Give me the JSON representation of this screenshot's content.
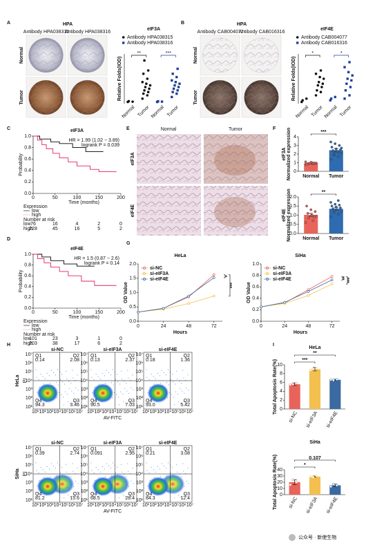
{
  "panels": {
    "letters": [
      "A",
      "B",
      "C",
      "D",
      "E",
      "F",
      "G",
      "H",
      "I"
    ],
    "A": {
      "title": "HPA",
      "antibodies": [
        "Antibody HPA038315",
        "Antibody HPA038316"
      ],
      "rows": [
        "Normal",
        "Tumor"
      ]
    },
    "B": {
      "title": "HPA",
      "antibodies": [
        "Antibody CAB004077",
        "Antibody CAB016316"
      ],
      "rows": [
        "Normal",
        "Tumor"
      ]
    },
    "E": {
      "columns": [
        "Normal",
        "Tumor"
      ],
      "rows": [
        "eIF3A",
        "eIF4E"
      ]
    },
    "H": {
      "rows": [
        "HeLa",
        "SiHa"
      ],
      "columns": [
        "si-NC",
        "si-eIF3A",
        "si-eIF4E"
      ],
      "quadrant_names": [
        "Q1",
        "Q2",
        "Q3",
        "Q4"
      ],
      "quadrants": [
        [
          [
            "0.14",
            "2.08",
            "3.46",
            "94.3"
          ],
          [
            "0.13",
            "2.37",
            "7.03",
            "90.5"
          ],
          [
            "0.18",
            "1.36",
            "5.42",
            "93.0"
          ]
        ],
        [
          [
            "0.39",
            "2.74",
            "15.6",
            "81.2"
          ],
          [
            "0.091",
            "2.95",
            "28.4",
            "68.5"
          ],
          [
            "0.21",
            "3.08",
            "12.4",
            "84.3"
          ]
        ]
      ],
      "xlabel": "AV-FITC",
      "ylabel": "PI",
      "tick_labels": [
        "10¹",
        "10²",
        "10³",
        "10⁴",
        "10⁵",
        "10⁶",
        "10⁷"
      ]
    }
  },
  "watermark": "公众号 · 新使生物",
  "chart_data": [
    {
      "type": "dot",
      "title": "eIF3A",
      "ylabel": "Relative Folds(IOD)",
      "categories": [
        "Normal",
        "Tumor"
      ],
      "ylim": [
        0,
        3
      ],
      "series": [
        {
          "name": "Antibody HPA038315",
          "color": "#111111",
          "marker": "circle",
          "values": [
            [
              0.1,
              0.12,
              0.15
            ],
            [
              0.3,
              0.5,
              0.6,
              0.7,
              0.8,
              0.9,
              1.0,
              1.1,
              1.2,
              1.3,
              1.5,
              1.8,
              2.0,
              2.6
            ]
          ]
        },
        {
          "name": "Antibody HPA038316",
          "color": "#1f3f9a",
          "marker": "square",
          "values": [
            [
              0.1,
              0.12,
              0.14
            ],
            [
              0.4,
              0.6,
              0.7,
              0.8,
              0.9,
              1.0,
              1.1,
              1.2,
              1.3,
              1.4,
              1.6,
              1.8,
              2.1
            ]
          ]
        }
      ],
      "annotations": [
        "**",
        "***"
      ]
    },
    {
      "type": "dot",
      "title": "eIF4E",
      "ylabel": "Relative Folds(IOD)",
      "categories": [
        "Normal",
        "Tumor"
      ],
      "ylim": [
        0,
        3
      ],
      "series": [
        {
          "name": "Antibody CAB004077",
          "color": "#111111",
          "marker": "circle",
          "values": [
            [
              0.1,
              0.3,
              0.2
            ],
            [
              0.5,
              0.7,
              0.8,
              1.0,
              1.1,
              1.2,
              1.3,
              1.5,
              1.6,
              1.8,
              2.0
            ]
          ]
        },
        {
          "name": "Antibody CAB016316",
          "color": "#1f3f9a",
          "marker": "square",
          "values": [
            [
              0.2,
              0.4,
              0.3
            ],
            [
              0.3,
              0.5,
              0.8,
              1.0,
              1.2,
              1.4,
              1.5,
              1.7,
              1.9,
              2.2,
              2.5
            ]
          ]
        }
      ],
      "annotations": [
        "*",
        "*"
      ]
    },
    {
      "type": "km",
      "title": "eIF3A",
      "stats": [
        "HR = 1.99 (1.02 − 3.89)",
        "logrank P = 0.039"
      ],
      "xlabel": "Time (months)",
      "ylabel": "Probability",
      "xlim": [
        0,
        200
      ],
      "xticks": [
        0,
        50,
        100,
        150,
        200
      ],
      "ylim": [
        0,
        1
      ],
      "yticks": [
        {
          "value": 0,
          "label": "0.0"
        },
        0.2,
        0.4,
        0.6,
        0.8,
        {
          "value": 1,
          "label": "1.0"
        }
      ],
      "legend_title": "Expression",
      "series": [
        {
          "name": "low",
          "color": "#000000",
          "x": [
            0,
            15,
            15,
            40,
            40,
            60,
            60,
            90,
            90,
            120,
            120,
            160
          ],
          "y": [
            1,
            1,
            0.95,
            0.95,
            0.9,
            0.9,
            0.87,
            0.87,
            0.8,
            0.8,
            0.73,
            0.73
          ]
        },
        {
          "name": "high",
          "color": "#e0245e",
          "x": [
            0,
            10,
            10,
            20,
            20,
            30,
            30,
            45,
            45,
            60,
            60,
            80,
            80,
            100,
            100,
            130,
            130,
            150,
            150,
            190
          ],
          "y": [
            1,
            1,
            0.93,
            0.93,
            0.85,
            0.85,
            0.78,
            0.78,
            0.7,
            0.7,
            0.62,
            0.62,
            0.55,
            0.55,
            0.48,
            0.48,
            0.42,
            0.42,
            0.38,
            0.38
          ]
        }
      ],
      "risk_table": {
        "title": "Number at risk",
        "rows": [
          {
            "name": "low",
            "color": "#000000",
            "counts": [
              76,
              16,
              4,
              2,
              0
            ]
          },
          {
            "name": "high",
            "color": "#e0245e",
            "counts": [
              228,
              45,
              16,
              5,
              2
            ]
          }
        ]
      }
    },
    {
      "type": "km",
      "title": "eIF4E",
      "stats": [
        "HR = 1.5 (0.87 − 2.6)",
        "logrank P = 0.14"
      ],
      "xlabel": "Time (months)",
      "ylabel": "Probability",
      "xlim": [
        0,
        200
      ],
      "xticks": [
        0,
        50,
        100,
        150,
        200
      ],
      "ylim": [
        0,
        1
      ],
      "yticks": [
        {
          "value": 0,
          "label": "0.0"
        },
        0.2,
        0.4,
        0.6,
        0.8,
        {
          "value": 1,
          "label": "1.0"
        }
      ],
      "legend_title": "Expression",
      "series": [
        {
          "name": "low",
          "color": "#000000",
          "x": [
            0,
            20,
            20,
            40,
            40,
            70,
            70,
            100,
            100,
            140
          ],
          "y": [
            1,
            1,
            0.95,
            0.95,
            0.88,
            0.88,
            0.82,
            0.82,
            0.78,
            0.78
          ]
        },
        {
          "name": "high",
          "color": "#e0245e",
          "x": [
            0,
            10,
            10,
            25,
            25,
            40,
            40,
            60,
            60,
            80,
            80,
            110,
            110,
            140,
            140,
            190
          ],
          "y": [
            1,
            1,
            0.92,
            0.92,
            0.84,
            0.84,
            0.76,
            0.76,
            0.68,
            0.68,
            0.6,
            0.6,
            0.5,
            0.5,
            0.42,
            0.42
          ]
        }
      ],
      "risk_table": {
        "title": "Number at risk",
        "rows": [
          {
            "name": "low",
            "color": "#000000",
            "counts": [
              101,
              23,
              3,
              1,
              0
            ]
          },
          {
            "name": "high",
            "color": "#e0245e",
            "counts": [
              203,
              38,
              17,
              6,
              2
            ]
          }
        ]
      }
    },
    {
      "type": "bar",
      "ylabel": [
        "eIF3A",
        "Normalized expression"
      ],
      "categories": [
        "Normal",
        "Tumor"
      ],
      "colors": [
        "#e8645a",
        "#2e6bb0"
      ],
      "values": [
        0.92,
        2.45
      ],
      "errors": [
        0.06,
        0.2
      ],
      "points": [
        [
          0.8,
          0.85,
          0.9,
          0.95,
          1.0,
          0.88,
          0.92,
          1.05,
          0.82,
          0.97,
          0.9,
          1.1
        ],
        [
          1.4,
          1.7,
          1.9,
          2.1,
          2.3,
          2.4,
          2.5,
          2.6,
          2.8,
          3.0,
          3.2,
          3.4,
          2.2,
          2.0,
          2.7
        ]
      ],
      "ylim": [
        0,
        4
      ],
      "yticks": [
        0,
        1,
        2,
        3,
        4
      ],
      "annotations": [
        "***"
      ]
    },
    {
      "type": "bar",
      "ylabel": [
        "eIF4E",
        "Normalized expression"
      ],
      "categories": [
        "Normal",
        "Tumor"
      ],
      "colors": [
        "#e8645a",
        "#2e6bb0"
      ],
      "values": [
        1.02,
        1.35
      ],
      "errors": [
        0.08,
        0.07
      ],
      "points": [
        [
          0.6,
          0.7,
          0.85,
          0.95,
          1.0,
          1.1,
          1.2,
          1.3,
          1.5,
          0.9
        ],
        [
          0.9,
          1.05,
          1.15,
          1.2,
          1.3,
          1.35,
          1.4,
          1.45,
          1.5,
          1.55,
          1.6,
          1.7,
          1.8,
          1.25
        ]
      ],
      "ylim": [
        0,
        2
      ],
      "yticks": [
        {
          "value": 0,
          "label": "0.0"
        },
        0.5,
        {
          "value": 1,
          "label": "1.0"
        },
        1.5,
        {
          "value": 2,
          "label": "2.0"
        }
      ],
      "annotations": [
        "**"
      ]
    },
    {
      "type": "line",
      "title": "HeLa",
      "xlabel": "Hours",
      "ylabel": "OD Value",
      "x": [
        0,
        24,
        48,
        72
      ],
      "xlim": [
        0,
        80
      ],
      "xticks": [
        0,
        24,
        48,
        72
      ],
      "ylim": [
        0,
        2
      ],
      "yticks": [
        {
          "value": 0,
          "label": "0.0"
        },
        0.5,
        {
          "value": 1,
          "label": "1.0"
        },
        1.5,
        {
          "value": 2,
          "label": "2.0"
        }
      ],
      "series": [
        {
          "name": "si-NC",
          "color": "#e8645a",
          "values": [
            0.32,
            0.45,
            0.85,
            1.62
          ],
          "errors": [
            0.02,
            0.02,
            0.03,
            0.05
          ]
        },
        {
          "name": "si-eIF3A",
          "color": "#f0c24c",
          "values": [
            0.32,
            0.42,
            0.62,
            0.88
          ],
          "errors": [
            0.02,
            0.02,
            0.03,
            0.04
          ]
        },
        {
          "name": "si-eIF4E",
          "color": "#3b6aa0",
          "values": [
            0.32,
            0.45,
            0.88,
            1.52
          ],
          "errors": [
            0.02,
            0.02,
            0.03,
            0.05
          ]
        }
      ],
      "annotations": [
        "*",
        "***"
      ]
    },
    {
      "type": "line",
      "title": "SiHa",
      "xlabel": "Hours",
      "ylabel": "OD Value",
      "x": [
        0,
        24,
        48,
        72
      ],
      "xlim": [
        0,
        80
      ],
      "xticks": [
        0,
        24,
        48,
        72
      ],
      "ylim": [
        0,
        1
      ],
      "yticks": [
        {
          "value": 0,
          "label": "0.0"
        },
        0.2,
        0.4,
        0.6,
        0.8,
        {
          "value": 1,
          "label": "1.0"
        }
      ],
      "series": [
        {
          "name": "si-NC",
          "color": "#e8645a",
          "values": [
            0.25,
            0.32,
            0.55,
            0.78
          ],
          "errors": [
            0.01,
            0.01,
            0.02,
            0.02
          ]
        },
        {
          "name": "si-eIF3A",
          "color": "#f0c24c",
          "values": [
            0.25,
            0.31,
            0.45,
            0.65
          ],
          "errors": [
            0.01,
            0.01,
            0.02,
            0.02
          ]
        },
        {
          "name": "si-eIF4E",
          "color": "#3b6aa0",
          "values": [
            0.25,
            0.33,
            0.52,
            0.72
          ],
          "errors": [
            0.01,
            0.01,
            0.02,
            0.02
          ]
        }
      ],
      "annotations": [
        "**",
        "***"
      ]
    },
    {
      "type": "bar",
      "title": "HeLa",
      "ylabel": [
        "Total Apoptosis Rate(%)"
      ],
      "categories": [
        "si-NC",
        "si-eIF3A",
        "si-eIF4E"
      ],
      "colors": [
        "#e8645a",
        "#f3c04f",
        "#3b6aa0"
      ],
      "values": [
        5.6,
        9.0,
        6.6
      ],
      "errors": [
        0.3,
        0.4,
        0.15
      ],
      "points": [
        [
          5.5,
          5.8,
          5.6
        ],
        [
          8.8,
          9.2,
          9.0
        ],
        [
          6.6,
          6.7,
          6.5
        ]
      ],
      "ylim": [
        0,
        10
      ],
      "yticks": [
        0,
        2,
        4,
        6,
        8,
        10
      ],
      "annotations": [
        "***",
        "**"
      ]
    },
    {
      "type": "bar",
      "title": "SiHa",
      "ylabel": [
        "Total Apoptosis Rate(%)"
      ],
      "categories": [
        "si-NC",
        "si-eIF3A",
        "si-eIF4E"
      ],
      "colors": [
        "#e8645a",
        "#f3c04f",
        "#3b6aa0"
      ],
      "values": [
        20,
        29,
        15
      ],
      "errors": [
        4,
        1,
        2
      ],
      "points": [
        [
          16,
          20,
          24
        ],
        [
          29,
          30,
          28
        ],
        [
          13,
          15,
          17
        ]
      ],
      "ylim": [
        0,
        40
      ],
      "yticks": [
        0,
        10,
        20,
        30,
        40
      ],
      "annotations": [
        "*",
        "0.107"
      ]
    }
  ]
}
